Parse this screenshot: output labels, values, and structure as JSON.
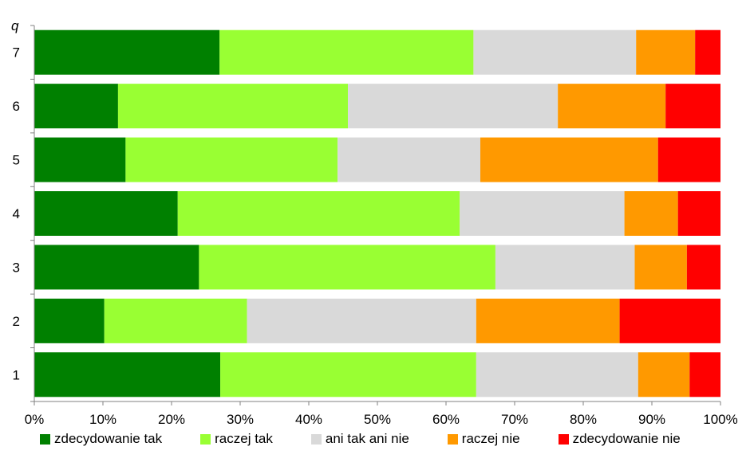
{
  "chart_data": {
    "type": "bar",
    "orientation": "horizontal",
    "stacked": "percent",
    "ylabel": "q",
    "categories": [
      "1",
      "2",
      "3",
      "4",
      "5",
      "6",
      "7"
    ],
    "x_ticks": [
      "0%",
      "10%",
      "20%",
      "30%",
      "40%",
      "50%",
      "60%",
      "70%",
      "80%",
      "90%",
      "100%"
    ],
    "xlim": [
      0,
      100
    ],
    "grid": false,
    "legend_position": "bottom",
    "series": [
      {
        "name": "zdecydowanie tak",
        "color": "#008000",
        "values": [
          27.1,
          10.2,
          24.0,
          20.9,
          13.3,
          12.2,
          27.0
        ]
      },
      {
        "name": "raczej tak",
        "color": "#99ff33",
        "values": [
          37.3,
          20.8,
          43.2,
          41.1,
          30.9,
          33.5,
          37.0
        ]
      },
      {
        "name": "ani tak ani nie",
        "color": "#d9d9d9",
        "values": [
          23.6,
          33.4,
          20.3,
          24.0,
          20.8,
          30.6,
          23.7
        ]
      },
      {
        "name": "raczej nie",
        "color": "#ff9900",
        "values": [
          7.5,
          20.9,
          7.6,
          7.8,
          25.9,
          15.7,
          8.6
        ]
      },
      {
        "name": "zdecydowanie nie",
        "color": "#ff0000",
        "values": [
          4.5,
          14.7,
          4.9,
          6.2,
          9.1,
          8.0,
          3.7
        ]
      }
    ]
  }
}
